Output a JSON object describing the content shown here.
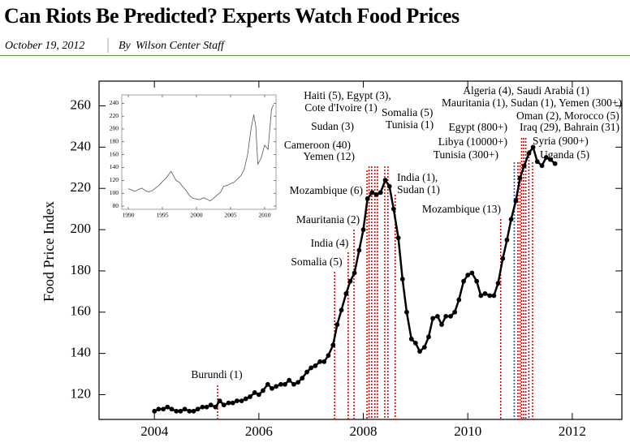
{
  "header": {
    "title": "Can Riots Be Predicted? Experts Watch Food Prices",
    "date": "October 19, 2012",
    "author_prefix": "By",
    "author": "Wilson Center Staff"
  },
  "chart_data": [
    {
      "type": "line",
      "ylabel": "Food Price Index",
      "color": "#000000",
      "markers": true,
      "xlim": [
        2002.94,
        2012.95
      ],
      "xticks": [
        2004,
        2006,
        2008,
        2010,
        2012
      ],
      "ylim": [
        108,
        272
      ],
      "yticks": [
        120,
        140,
        160,
        180,
        200,
        220,
        240,
        260
      ],
      "x": [
        2004.0,
        2004.08,
        2004.17,
        2004.25,
        2004.33,
        2004.42,
        2004.5,
        2004.58,
        2004.67,
        2004.75,
        2004.83,
        2004.92,
        2005.0,
        2005.08,
        2005.17,
        2005.25,
        2005.33,
        2005.42,
        2005.5,
        2005.58,
        2005.67,
        2005.75,
        2005.83,
        2005.92,
        2006.0,
        2006.08,
        2006.17,
        2006.25,
        2006.33,
        2006.42,
        2006.5,
        2006.58,
        2006.67,
        2006.75,
        2006.83,
        2006.92,
        2007.0,
        2007.08,
        2007.17,
        2007.25,
        2007.33,
        2007.42,
        2007.5,
        2007.58,
        2007.67,
        2007.75,
        2007.83,
        2007.92,
        2008.0,
        2008.08,
        2008.17,
        2008.25,
        2008.33,
        2008.42,
        2008.5,
        2008.58,
        2008.67,
        2008.75,
        2008.83,
        2008.92,
        2009.0,
        2009.08,
        2009.17,
        2009.25,
        2009.33,
        2009.42,
        2009.5,
        2009.58,
        2009.67,
        2009.75,
        2009.83,
        2009.92,
        2010.0,
        2010.08,
        2010.17,
        2010.25,
        2010.33,
        2010.42,
        2010.5,
        2010.58,
        2010.67,
        2010.75,
        2010.83,
        2010.92,
        2011.0,
        2011.08,
        2011.17,
        2011.25,
        2011.33,
        2011.42,
        2011.5,
        2011.58,
        2011.67
      ],
      "values": [
        112,
        113,
        113,
        114,
        113,
        112,
        112,
        113,
        112,
        112,
        113,
        114,
        114,
        115,
        114,
        117,
        115,
        116,
        116,
        117,
        117,
        118,
        119,
        121,
        120,
        122,
        125,
        123,
        124,
        125,
        125,
        127,
        125,
        126,
        128,
        131,
        133,
        134,
        136,
        136,
        139,
        144,
        154,
        161,
        169,
        175,
        179,
        190,
        200,
        215,
        218,
        217,
        218,
        224,
        221,
        210,
        196,
        176,
        160,
        147,
        145,
        141,
        143,
        148,
        157,
        158,
        154,
        158,
        158,
        160,
        166,
        175,
        178,
        179,
        175,
        168,
        169,
        168,
        168,
        174,
        186,
        195,
        205,
        214,
        225,
        231,
        237,
        240,
        233,
        231,
        235,
        234,
        232
      ],
      "annotations": [
        {
          "x": 2005.21,
          "text": [
            "Burundi (1)"
          ],
          "color": "#e00000"
        },
        {
          "x": 2007.45,
          "text": [
            "Somalia (5)"
          ],
          "color": "#e00000"
        },
        {
          "x": 2007.71,
          "text": [
            "India (4)"
          ],
          "color": "#e00000"
        },
        {
          "x": 2007.82,
          "text": [
            "Mauritania (2)"
          ],
          "color": "#e00000"
        },
        {
          "x": 2008.07,
          "text": [
            "Mozambique (6)"
          ],
          "color": "#e00000"
        },
        {
          "x": 2008.11,
          "text": [
            "Yemen (12)"
          ],
          "color": "#e00000"
        },
        {
          "x": 2008.16,
          "text": [
            "Cameroon (40)"
          ],
          "color": "#e00000"
        },
        {
          "x": 2008.22,
          "text": [
            "Sudan (3)"
          ],
          "color": "#e00000"
        },
        {
          "x": 2008.27,
          "text": [
            "Haiti (5), Egypt (3),",
            "Cote d'Ivoire (1)"
          ],
          "color": "#e00000"
        },
        {
          "x": 2008.41,
          "text": [
            "Somalia (5)"
          ],
          "color": "#e00000"
        },
        {
          "x": 2008.47,
          "text": [
            "Tunisia (1)"
          ],
          "color": "#e00000"
        },
        {
          "x": 2008.61,
          "text": [
            "India (1),",
            "Sudan (1)"
          ],
          "color": "#e00000"
        },
        {
          "x": 2010.63,
          "text": [
            "Mozambique (13)"
          ],
          "color": "#e00000"
        },
        {
          "x": 2010.89,
          "text": [
            "Tunisia (300+)"
          ],
          "color": "#2040ff"
        },
        {
          "x": 2010.96,
          "text": [
            "Libya (10000+)"
          ],
          "color": "#e00000"
        },
        {
          "x": 2011.0,
          "text": [
            "Egypt (800+)"
          ],
          "color": "#e00000"
        },
        {
          "x": 2011.03,
          "text": [
            "Iraq (29), Bahrain (31)"
          ],
          "color": "#e00000"
        },
        {
          "x": 2011.07,
          "text": [
            "Algeria (4), Saudi Arabia (1)",
            "Mauritania (1), Sudan (1), Yemen (300+)"
          ],
          "color": "#e00000"
        },
        {
          "x": 2011.11,
          "text": [
            "Oman (2), Morocco (5)"
          ],
          "color": "#e00000"
        },
        {
          "x": 2011.17,
          "text": [
            "Syria (900+)"
          ],
          "color": "#e00000"
        },
        {
          "x": 2011.24,
          "text": [
            "Uganda (5)"
          ],
          "color": "#e00000"
        }
      ]
    },
    {
      "type": "line",
      "color": "#555555",
      "markers": false,
      "xlim": [
        1989.05,
        2011.67
      ],
      "xticks": [
        1990,
        1995,
        2000,
        2005,
        2010
      ],
      "ylim": [
        75,
        253
      ],
      "yticks": [
        80,
        100,
        120,
        140,
        160,
        180,
        200,
        220,
        240
      ],
      "x": [
        1990,
        1990.5,
        1991,
        1991.5,
        1992,
        1992.5,
        1993,
        1993.5,
        1994,
        1994.5,
        1995,
        1995.5,
        1996,
        1996.3,
        1996.8,
        1997,
        1997.5,
        1998,
        1998.5,
        1999,
        1999.5,
        2000,
        2000.5,
        2001,
        2001.5,
        2002,
        2002.5,
        2003,
        2003.5,
        2004,
        2004.5,
        2005,
        2005.5,
        2006,
        2006.5,
        2007,
        2007.5,
        2008,
        2008.4,
        2008.7,
        2009,
        2009.5,
        2010,
        2010.5,
        2011,
        2011.3
      ],
      "values": [
        107,
        105,
        103,
        106,
        108,
        104,
        102,
        104,
        108,
        112,
        118,
        123,
        130,
        134,
        124,
        120,
        117,
        110,
        104,
        96,
        92,
        91,
        90,
        93,
        91,
        88,
        92,
        97,
        101,
        111,
        112,
        115,
        117,
        122,
        127,
        137,
        160,
        200,
        222,
        205,
        145,
        155,
        175,
        168,
        230,
        238
      ]
    }
  ]
}
